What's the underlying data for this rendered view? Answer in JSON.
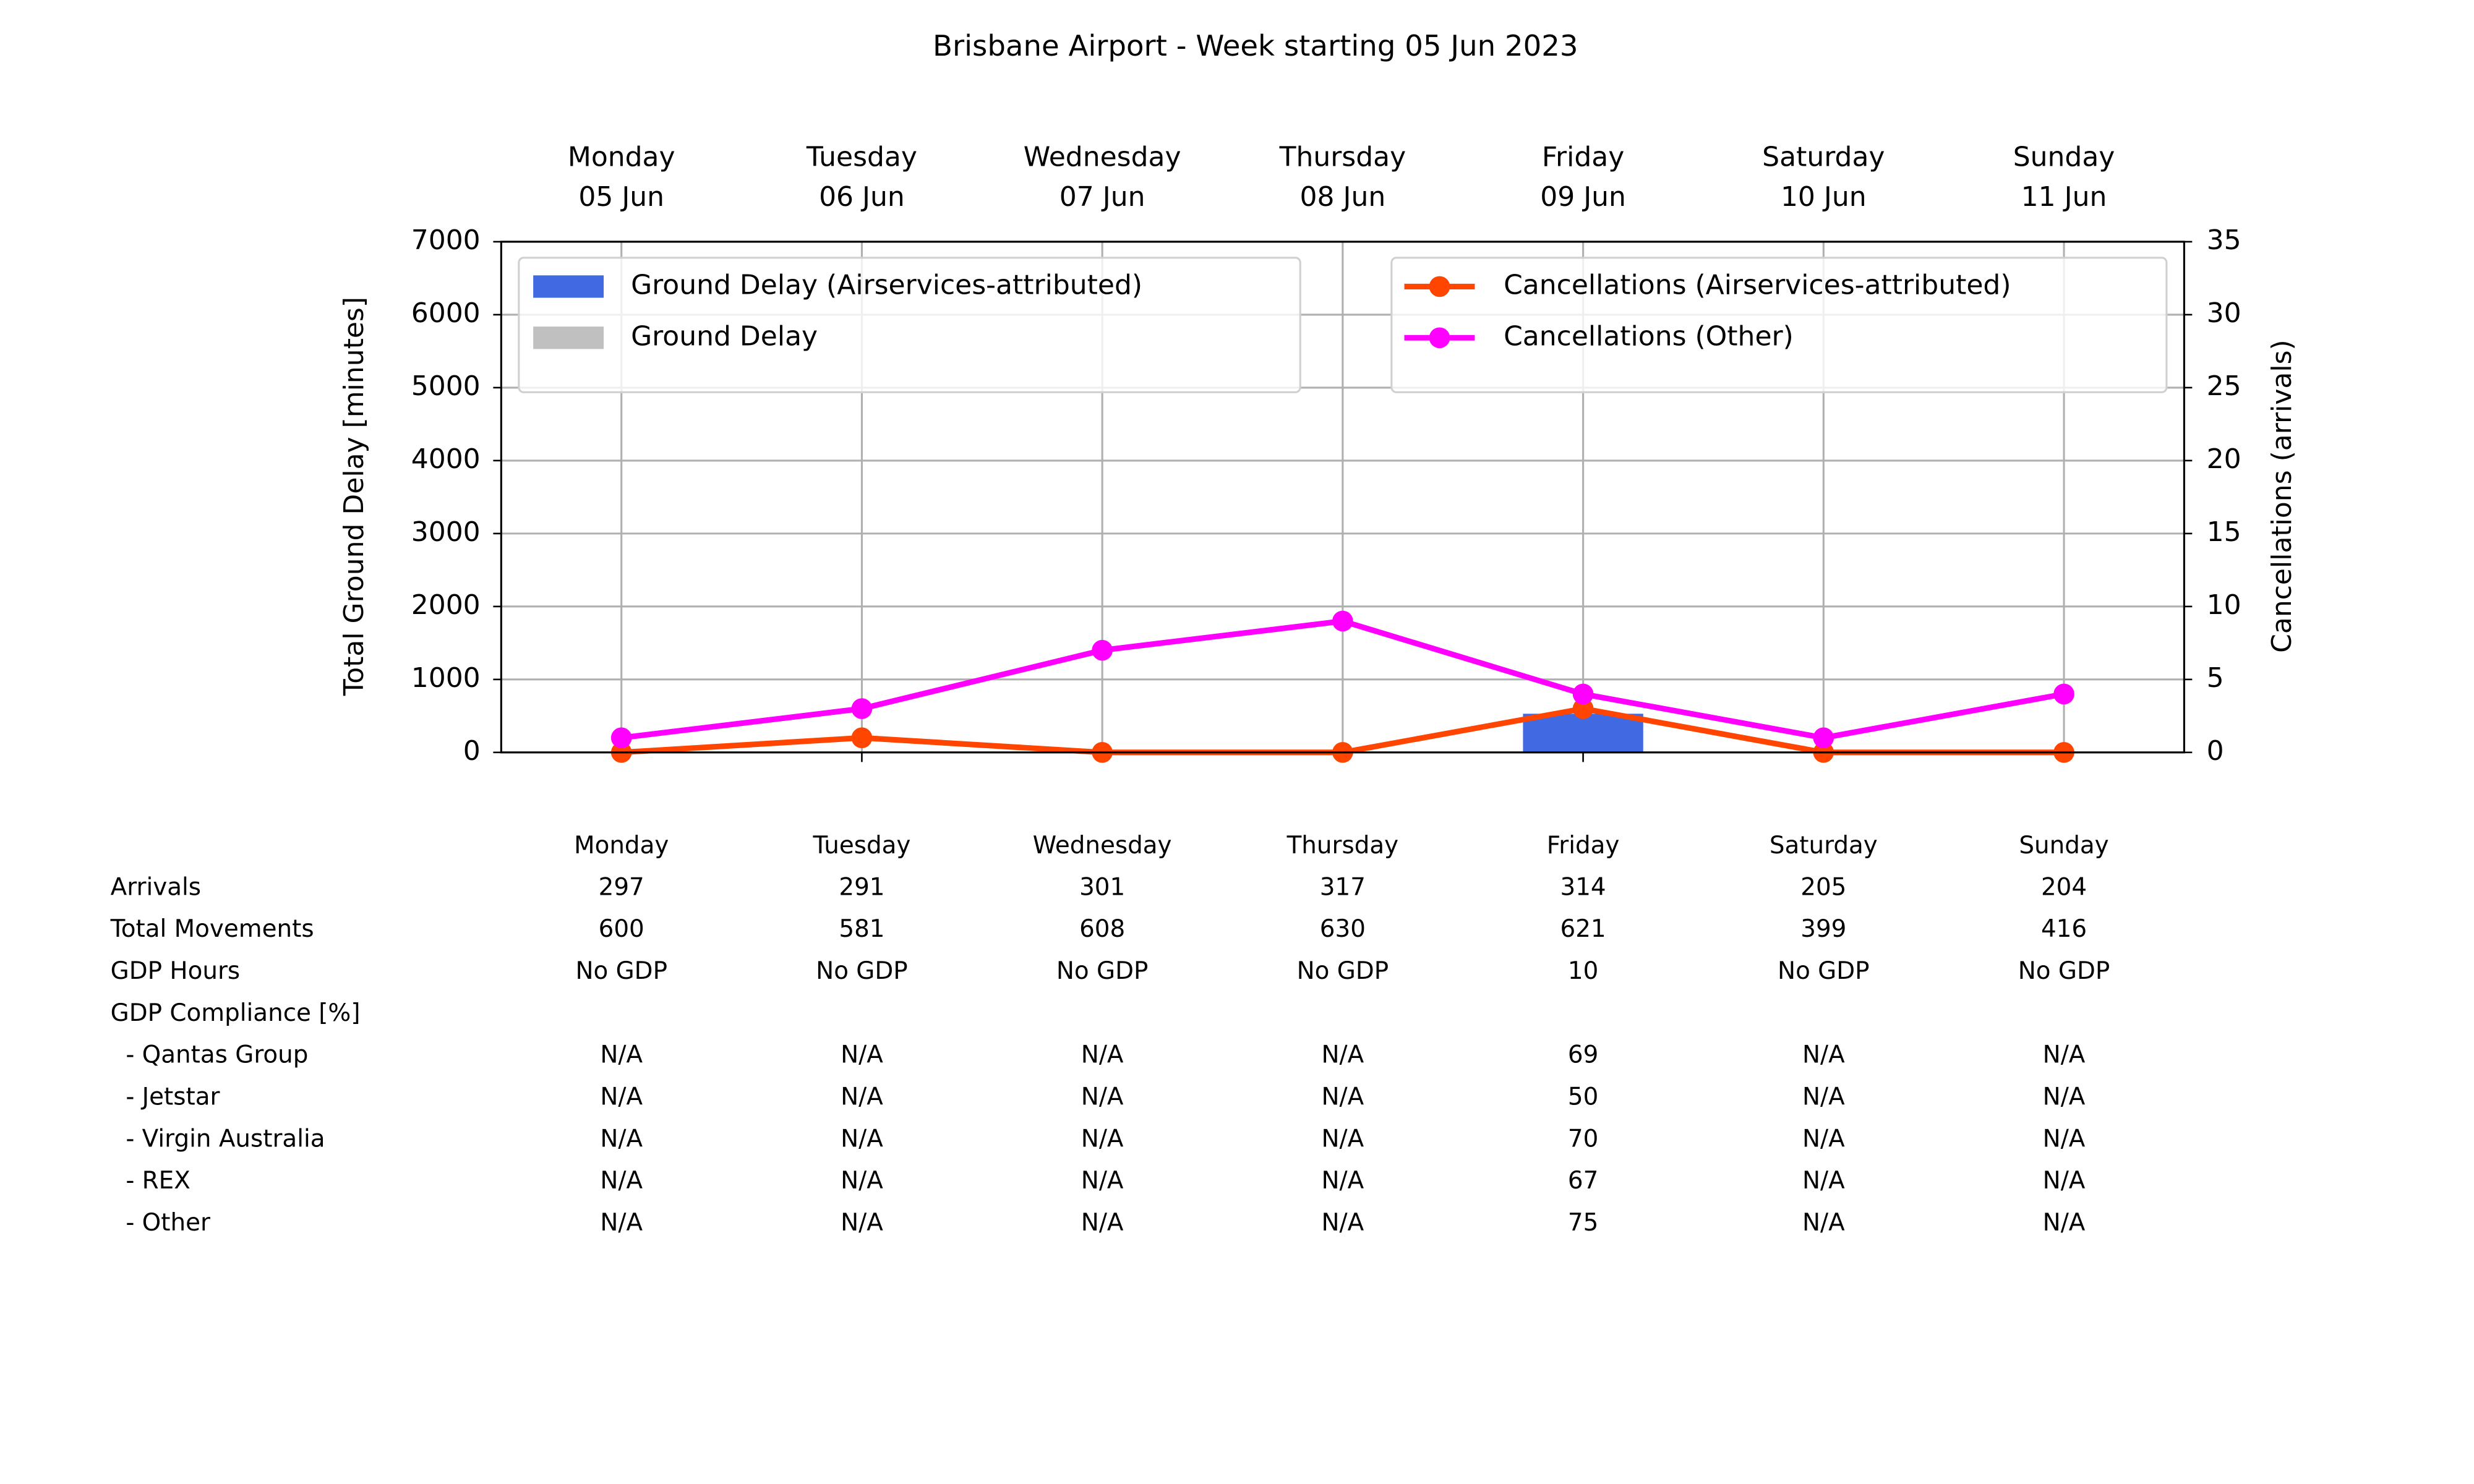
{
  "chart_data": {
    "type": "bar_line",
    "title": "Brisbane Airport - Week starting 05 Jun 2023",
    "categories": [
      [
        "Monday",
        "05 Jun"
      ],
      [
        "Tuesday",
        "06 Jun"
      ],
      [
        "Wednesday",
        "07 Jun"
      ],
      [
        "Thursday",
        "08 Jun"
      ],
      [
        "Friday",
        "09 Jun"
      ],
      [
        "Saturday",
        "10 Jun"
      ],
      [
        "Sunday",
        "11 Jun"
      ]
    ],
    "ylabel": "Total Ground Delay [minutes]",
    "y2label": "Cancellations (arrivals)",
    "ylim": [
      0,
      7000
    ],
    "yticks": [
      0,
      1000,
      2000,
      3000,
      4000,
      5000,
      6000,
      7000
    ],
    "y2lim": [
      0,
      35
    ],
    "y2ticks": [
      0,
      5,
      10,
      15,
      20,
      25,
      30,
      35
    ],
    "grid": true,
    "legend": {
      "bar": "upper left",
      "line": "upper right"
    },
    "series": [
      {
        "name": "Ground Delay (Airservices-attributed)",
        "kind": "bar",
        "color": "#4169e1",
        "values": [
          0,
          0,
          0,
          0,
          530,
          0,
          0
        ]
      },
      {
        "name": "Ground Delay",
        "kind": "bar",
        "color": "#c0c0c0",
        "values": [
          0,
          0,
          0,
          0,
          0,
          0,
          0
        ]
      },
      {
        "name": "Cancellations (Airservices-attributed)",
        "kind": "line",
        "axis": "y2",
        "color": "#ff4500",
        "values": [
          0,
          1,
          0,
          0,
          3,
          0,
          0
        ]
      },
      {
        "name": "Cancellations (Other)",
        "kind": "line",
        "axis": "y2",
        "color": "#ff00ff",
        "values": [
          1,
          3,
          7,
          9,
          4,
          1,
          4
        ]
      }
    ]
  },
  "table": {
    "columns": [
      "Monday",
      "Tuesday",
      "Wednesday",
      "Thursday",
      "Friday",
      "Saturday",
      "Sunday"
    ],
    "rows": [
      {
        "label": "Arrivals",
        "cells": [
          297,
          291,
          301,
          317,
          314,
          205,
          204
        ]
      },
      {
        "label": "Total Movements",
        "cells": [
          600,
          581,
          608,
          630,
          621,
          399,
          416
        ]
      },
      {
        "label": "GDP Hours",
        "cells": [
          "No GDP",
          "No GDP",
          "No GDP",
          "No GDP",
          10,
          "No GDP",
          "No GDP"
        ]
      },
      {
        "label": "GDP Compliance [%]",
        "cells": []
      },
      {
        "label": "  - Qantas Group",
        "cells": [
          "N/A",
          "N/A",
          "N/A",
          "N/A",
          69,
          "N/A",
          "N/A"
        ]
      },
      {
        "label": "  - Jetstar",
        "cells": [
          "N/A",
          "N/A",
          "N/A",
          "N/A",
          50,
          "N/A",
          "N/A"
        ]
      },
      {
        "label": "  - Virgin Australia",
        "cells": [
          "N/A",
          "N/A",
          "N/A",
          "N/A",
          70,
          "N/A",
          "N/A"
        ]
      },
      {
        "label": "  - REX",
        "cells": [
          "N/A",
          "N/A",
          "N/A",
          "N/A",
          67,
          "N/A",
          "N/A"
        ]
      },
      {
        "label": "  - Other",
        "cells": [
          "N/A",
          "N/A",
          "N/A",
          "N/A",
          75,
          "N/A",
          "N/A"
        ]
      }
    ]
  }
}
